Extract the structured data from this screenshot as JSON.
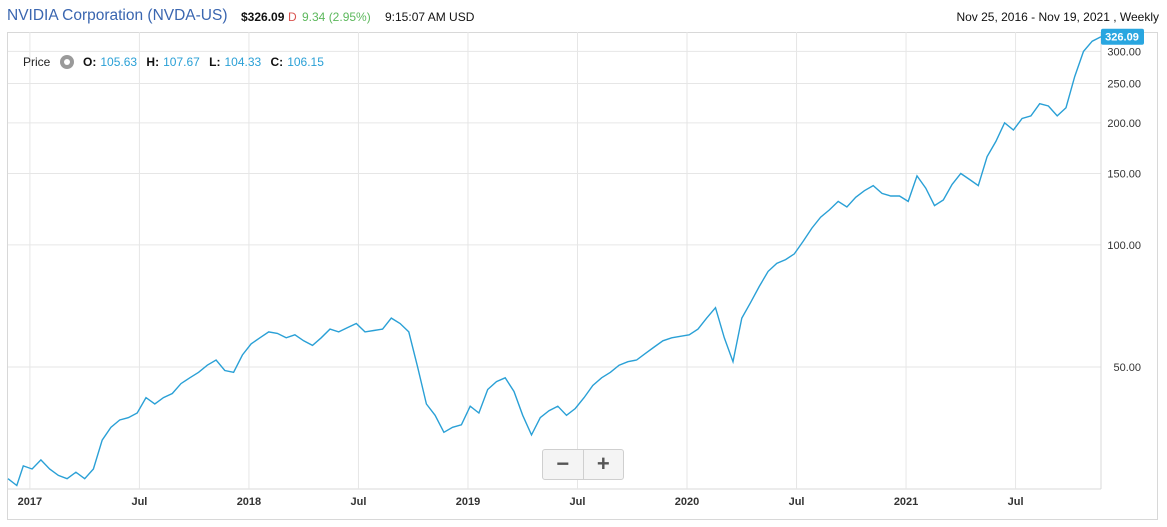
{
  "header": {
    "title": "NVIDIA Corporation (NVDA-US)",
    "price": "$326.09",
    "direction": "D",
    "change": "9.34 (2.95%)",
    "time": "9:15:07 AM USD",
    "range": "Nov 25, 2016 - Nov 19, 2021 , Weekly"
  },
  "ohlc": {
    "label": "Price",
    "o_label": "O:",
    "o": "105.63",
    "h_label": "H:",
    "h": "107.67",
    "l_label": "L:",
    "l": "104.33",
    "c_label": "C:",
    "c": "106.15"
  },
  "zoom": {
    "minus": "−",
    "plus": "+"
  },
  "colors": {
    "line": "#2aa0d6",
    "badge": "#29a6e0",
    "grid": "#e6e6e6"
  },
  "chart_data": {
    "type": "line",
    "title": "NVIDIA Corporation (NVDA-US)",
    "scale": "log",
    "ylim": [
      25,
      335
    ],
    "y_ticks": [
      50,
      100,
      150,
      200,
      250,
      300
    ],
    "y_tick_labels": [
      "50.00",
      "100.00",
      "150.00",
      "200.00",
      "250.00",
      "300.00"
    ],
    "last_value_label": "326.09",
    "x_range": [
      2016.9,
      2021.89
    ],
    "x_ticks": [
      {
        "x": 2017.0,
        "label": "2017"
      },
      {
        "x": 2017.5,
        "label": "Jul"
      },
      {
        "x": 2018.0,
        "label": "2018"
      },
      {
        "x": 2018.5,
        "label": "Jul"
      },
      {
        "x": 2019.0,
        "label": "2019"
      },
      {
        "x": 2019.5,
        "label": "Jul"
      },
      {
        "x": 2020.0,
        "label": "2020"
      },
      {
        "x": 2020.5,
        "label": "Jul"
      },
      {
        "x": 2021.0,
        "label": "2021"
      },
      {
        "x": 2021.5,
        "label": "Jul"
      }
    ],
    "series": [
      {
        "name": "Price",
        "x": [
          2016.9,
          2016.94,
          2016.97,
          2017.01,
          2017.05,
          2017.09,
          2017.13,
          2017.17,
          2017.21,
          2017.25,
          2017.29,
          2017.33,
          2017.37,
          2017.41,
          2017.45,
          2017.49,
          2017.53,
          2017.57,
          2017.61,
          2017.65,
          2017.69,
          2017.73,
          2017.77,
          2017.81,
          2017.85,
          2017.89,
          2017.93,
          2017.97,
          2018.01,
          2018.05,
          2018.09,
          2018.13,
          2018.17,
          2018.21,
          2018.25,
          2018.29,
          2018.33,
          2018.37,
          2018.41,
          2018.45,
          2018.49,
          2018.53,
          2018.57,
          2018.61,
          2018.65,
          2018.69,
          2018.73,
          2018.77,
          2018.81,
          2018.85,
          2018.89,
          2018.93,
          2018.97,
          2019.01,
          2019.05,
          2019.09,
          2019.13,
          2019.17,
          2019.21,
          2019.25,
          2019.29,
          2019.33,
          2019.37,
          2019.41,
          2019.45,
          2019.49,
          2019.53,
          2019.57,
          2019.61,
          2019.65,
          2019.69,
          2019.73,
          2019.77,
          2019.81,
          2019.85,
          2019.89,
          2019.93,
          2019.97,
          2020.01,
          2020.05,
          2020.09,
          2020.13,
          2020.17,
          2020.21,
          2020.25,
          2020.29,
          2020.33,
          2020.37,
          2020.41,
          2020.45,
          2020.49,
          2020.53,
          2020.57,
          2020.61,
          2020.65,
          2020.69,
          2020.73,
          2020.77,
          2020.81,
          2020.85,
          2020.89,
          2020.93,
          2020.97,
          2021.01,
          2021.05,
          2021.09,
          2021.13,
          2021.17,
          2021.21,
          2021.25,
          2021.29,
          2021.33,
          2021.37,
          2021.41,
          2021.45,
          2021.49,
          2021.53,
          2021.57,
          2021.61,
          2021.65,
          2021.69,
          2021.73,
          2021.77,
          2021.81,
          2021.85,
          2021.89
        ],
        "values": [
          26.5,
          25.5,
          28.5,
          28.0,
          29.5,
          28.0,
          27.0,
          26.5,
          27.5,
          26.5,
          28.0,
          33.0,
          35.5,
          37.0,
          37.5,
          38.5,
          42.0,
          40.5,
          42.0,
          43.0,
          45.5,
          47.0,
          48.5,
          50.5,
          52.0,
          49.0,
          48.5,
          53.5,
          57.0,
          59.0,
          61.0,
          60.5,
          59.0,
          60.0,
          58.0,
          56.5,
          59.0,
          62.0,
          61.0,
          62.5,
          64.0,
          61.0,
          61.5,
          62.0,
          66.0,
          64.0,
          61.0,
          50.0,
          40.5,
          38.0,
          34.5,
          35.5,
          36.0,
          40.0,
          38.5,
          44.0,
          46.0,
          47.0,
          43.5,
          38.0,
          34.0,
          37.5,
          39.0,
          40.0,
          38.0,
          39.5,
          42.0,
          45.0,
          47.0,
          48.5,
          50.5,
          51.5,
          52.0,
          54.0,
          56.0,
          58.0,
          59.0,
          59.5,
          60.0,
          62.0,
          66.0,
          70.0,
          59.0,
          51.5,
          66.0,
          72.0,
          79.0,
          86.0,
          90.0,
          92.0,
          95.0,
          102.0,
          110.0,
          117.0,
          122.0,
          128.0,
          124.0,
          131.0,
          136.0,
          140.0,
          134.0,
          132.0,
          132.0,
          128.0,
          148.0,
          138.0,
          125.0,
          129.0,
          141.0,
          150.0,
          145.0,
          140.0,
          165.0,
          180.0,
          200.0,
          192.0,
          205.0,
          208.0,
          223.0,
          220.0,
          208.0,
          218.0,
          260.0,
          300.0,
          318.0,
          326.09
        ]
      }
    ]
  }
}
